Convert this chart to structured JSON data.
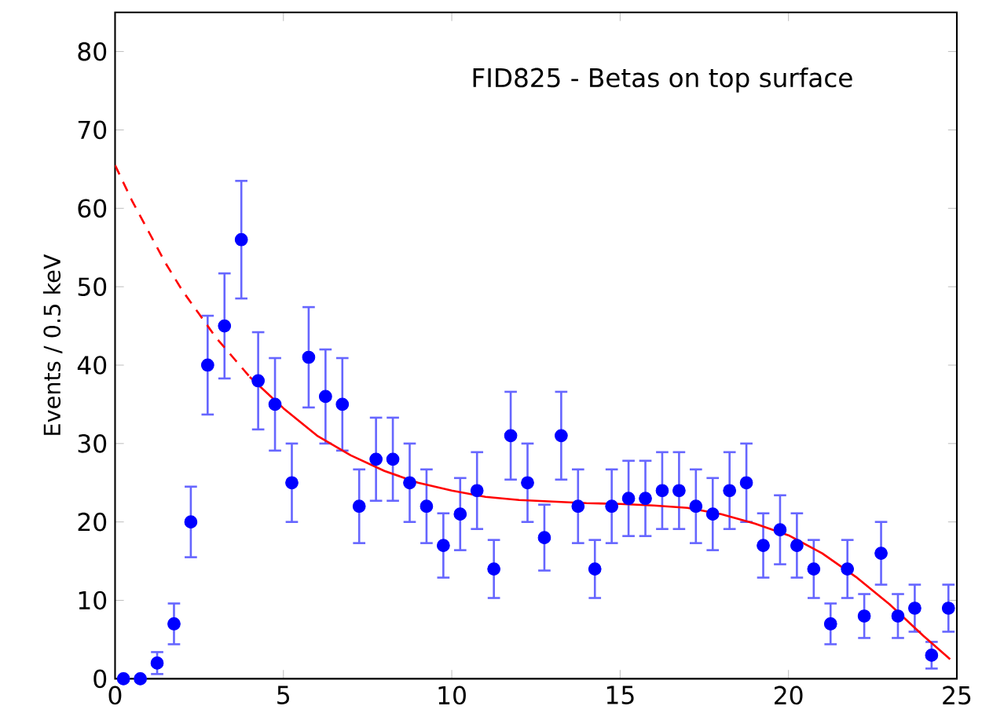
{
  "chart_data": {
    "type": "scatter",
    "title": "FID825 - Betas on top surface",
    "ylabel": "Events / 0.5 keV",
    "xlim": [
      0,
      25
    ],
    "ylim": [
      0,
      85
    ],
    "xticks": [
      0,
      5,
      10,
      15,
      20,
      25
    ],
    "yticks": [
      0,
      10,
      20,
      30,
      40,
      50,
      60,
      70,
      80
    ],
    "series": [
      {
        "marker": "circle",
        "color": "#0000ff",
        "x": [
          0.25,
          0.75,
          1.25,
          1.75,
          2.25,
          2.75,
          3.25,
          3.75,
          4.25,
          4.75,
          5.25,
          5.75,
          6.25,
          6.75,
          7.25,
          7.75,
          8.25,
          8.75,
          9.25,
          9.75,
          10.25,
          10.75,
          11.25,
          11.75,
          12.25,
          12.75,
          13.25,
          13.75,
          14.25,
          14.75,
          15.25,
          15.75,
          16.25,
          16.75,
          17.25,
          17.75,
          18.25,
          18.75,
          19.25,
          19.75,
          20.25,
          20.75,
          21.25,
          21.75,
          22.25,
          22.75,
          23.25,
          23.75,
          24.25,
          24.75
        ],
        "values": [
          0,
          0,
          2,
          7,
          20,
          40,
          45,
          56,
          38,
          35,
          25,
          41,
          36,
          35,
          22,
          28,
          28,
          25,
          22,
          17,
          21,
          24,
          14,
          31,
          25,
          18,
          31,
          22,
          14,
          22,
          23,
          23,
          24,
          24,
          22,
          21,
          24,
          25,
          17,
          19,
          17,
          14,
          7,
          14,
          8,
          16,
          8,
          9,
          3,
          9
        ],
        "errors": [
          null,
          null,
          1.4,
          2.6,
          4.5,
          6.3,
          6.7,
          7.5,
          6.2,
          5.9,
          5,
          6.4,
          6,
          5.9,
          4.7,
          5.3,
          5.3,
          5,
          4.7,
          4.1,
          4.6,
          4.9,
          3.7,
          5.6,
          5,
          4.2,
          5.6,
          4.7,
          3.7,
          4.7,
          4.8,
          4.8,
          4.9,
          4.9,
          4.7,
          4.6,
          4.9,
          5,
          4.1,
          4.4,
          4.1,
          3.7,
          2.6,
          3.7,
          2.8,
          4,
          2.8,
          3,
          1.7,
          3
        ]
      },
      {
        "type": "line",
        "marker": "none",
        "line_style": "dashed",
        "color": "#ff0000",
        "x": [
          0,
          0.5,
          1,
          1.5,
          2,
          2.5,
          3,
          3.5,
          4
        ],
        "values": [
          65.5,
          61,
          57,
          53,
          49.5,
          46.5,
          43.5,
          41,
          38.5
        ]
      },
      {
        "type": "line",
        "marker": "none",
        "line_style": "solid",
        "color": "#ff0000",
        "x": [
          4,
          5,
          6,
          7,
          8,
          9,
          10,
          11,
          12,
          13,
          14,
          15,
          16,
          17,
          18,
          19,
          20,
          21,
          22,
          23,
          24,
          24.8
        ],
        "values": [
          38.5,
          34.5,
          31,
          28.5,
          26.5,
          25,
          24,
          23.2,
          22.8,
          22.6,
          22.4,
          22.3,
          22.1,
          21.8,
          21,
          19.8,
          18.3,
          16,
          13,
          9.5,
          5.5,
          2.5
        ]
      }
    ]
  }
}
